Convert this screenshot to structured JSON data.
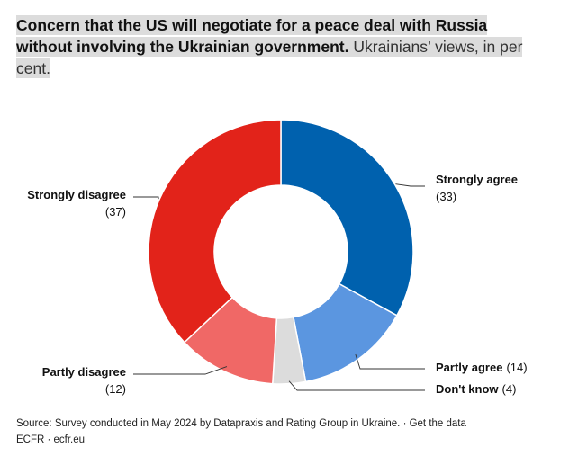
{
  "title": {
    "bold": "Concern that the US will negotiate for a peace deal with Russia without involving the Ukrainian government.",
    "subtitle": "Ukrainians’ views, in per cent."
  },
  "chart_data": {
    "type": "pie",
    "variant": "donut",
    "categories": [
      "Strongly agree",
      "Partly agree",
      "Don't know",
      "Partly disagree",
      "Strongly disagree"
    ],
    "values": [
      33,
      14,
      4,
      12,
      37
    ],
    "colors": [
      "#0061ae",
      "#5b96e0",
      "#dcdcdc",
      "#f06866",
      "#e2231a"
    ],
    "labels": [
      {
        "name": "Strongly agree",
        "value_text": "(33)"
      },
      {
        "name": "Partly agree",
        "value_text": "(14)"
      },
      {
        "name": "Don't know",
        "value_text": "(4)"
      },
      {
        "name": "Partly disagree",
        "value_text": "(12)"
      },
      {
        "name": "Strongly disagree",
        "value_text": "(37)"
      }
    ]
  },
  "footer": {
    "source": "Source: Survey conducted in May 2024 by Datapraxis and Rating Group in Ukraine. · Get the data",
    "credit": "ECFR · ecfr.eu"
  }
}
